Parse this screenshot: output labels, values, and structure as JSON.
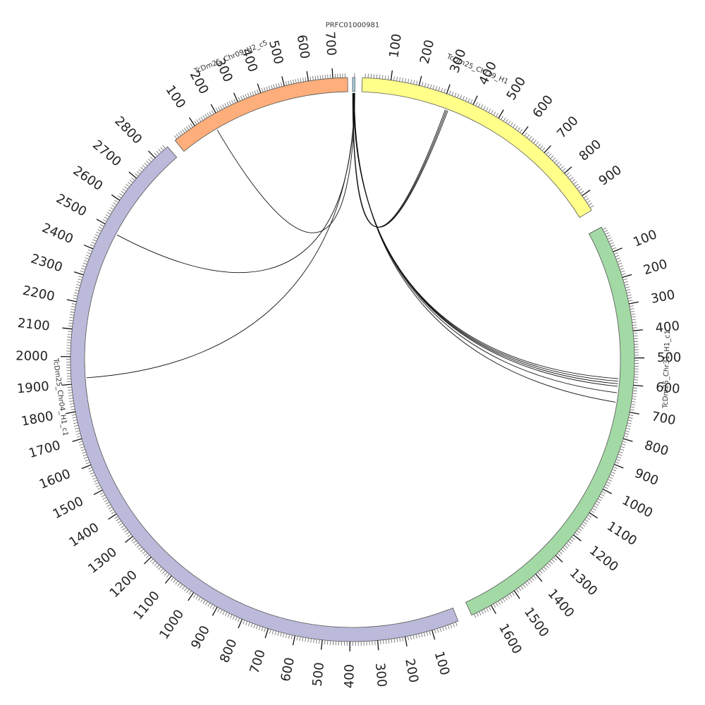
{
  "diagram": {
    "type": "circos",
    "tick_major_step": 100,
    "tick_minor_step": 10,
    "segments": [
      {
        "id": "prfc",
        "name": "PRFC01000981",
        "length": 12,
        "color": "#a6cee3",
        "start_deg": 0,
        "end_deg": 0.5,
        "tick_labels": []
      },
      {
        "id": "chr19",
        "name": "TcDm25_Chr19_H1",
        "length": 960,
        "color": "#ffff8a",
        "start_deg": 2,
        "end_deg": 58,
        "tick_labels": [
          "100",
          "200",
          "300",
          "400",
          "500",
          "600",
          "700",
          "800",
          "900"
        ]
      },
      {
        "id": "chr31",
        "name": "TcDm25_Chr31_H1_c1",
        "length": 1680,
        "color": "#a3d9a5",
        "start_deg": 62,
        "end_deg": 155,
        "tick_labels": [
          "100",
          "200",
          "300",
          "400",
          "500",
          "600",
          "700",
          "800",
          "900",
          "1000",
          "1100",
          "1200",
          "1300",
          "1400",
          "1500",
          "1600"
        ]
      },
      {
        "id": "chr04",
        "name": "TcDm25_Chr04_H1_c1",
        "length": 2860,
        "color": "#bcbadb",
        "start_deg": 158,
        "end_deg": 319,
        "tick_labels": [
          "100",
          "200",
          "300",
          "400",
          "500",
          "600",
          "700",
          "800",
          "900",
          "1000",
          "1100",
          "1200",
          "1300",
          "1400",
          "1500",
          "1600",
          "1700",
          "1800",
          "1900",
          "2000",
          "2100",
          "2200",
          "2300",
          "2400",
          "2500",
          "2600",
          "2700",
          "2800"
        ]
      },
      {
        "id": "chr09",
        "name": "TcDm25_Chr09_H2_c5",
        "length": 760,
        "color": "#fdae7a",
        "start_deg": 321,
        "end_deg": 359,
        "tick_labels": [
          "100",
          "200",
          "300",
          "400",
          "500",
          "600",
          "700"
        ]
      }
    ],
    "links": [
      {
        "from": "prfc",
        "from_pos": 1,
        "to": "chr19",
        "to_pos": 315
      },
      {
        "from": "prfc",
        "from_pos": 2,
        "to": "chr19",
        "to_pos": 320
      },
      {
        "from": "prfc",
        "from_pos": 3,
        "to": "chr19",
        "to_pos": 325
      },
      {
        "from": "prfc",
        "from_pos": 5,
        "to": "chr31",
        "to_pos": 580
      },
      {
        "from": "prfc",
        "from_pos": 6,
        "to": "chr31",
        "to_pos": 590
      },
      {
        "from": "prfc",
        "from_pos": 7,
        "to": "chr31",
        "to_pos": 600
      },
      {
        "from": "prfc",
        "from_pos": 8,
        "to": "chr31",
        "to_pos": 610
      },
      {
        "from": "prfc",
        "from_pos": 9,
        "to": "chr31",
        "to_pos": 635
      },
      {
        "from": "prfc",
        "from_pos": 10,
        "to": "chr31",
        "to_pos": 672
      },
      {
        "from": "prfc",
        "from_pos": 11,
        "to": "chr04",
        "to_pos": 1920
      },
      {
        "from": "prfc",
        "from_pos": 11.5,
        "to": "chr04",
        "to_pos": 2485
      },
      {
        "from": "prfc",
        "from_pos": 12,
        "to": "chr09",
        "to_pos": 170
      }
    ]
  }
}
